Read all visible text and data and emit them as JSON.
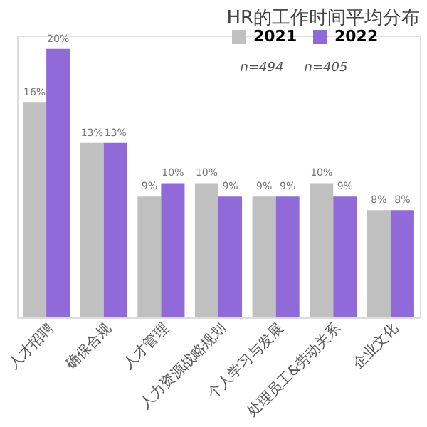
{
  "chart_data": {
    "type": "bar",
    "title": "HR的工作时间平均分布",
    "categories": [
      "人才招聘",
      "确保合规",
      "人才管理",
      "人力资源战略规划",
      "个人学习与发展",
      "处理员工&劳动关系",
      "企业文化"
    ],
    "series": [
      {
        "name": "2021",
        "color": "#c0c0c0",
        "values": [
          16,
          13,
          9,
          10,
          9,
          10,
          8
        ],
        "value_labels": [
          "16%",
          "13%",
          "9%",
          "10%",
          "9%",
          "10%",
          "8%"
        ]
      },
      {
        "name": "2022",
        "color": "#8f6ad8",
        "values": [
          20,
          13,
          10,
          9,
          9,
          9,
          8
        ],
        "value_labels": [
          "20%",
          "13%",
          "10%",
          "9%",
          "9%",
          "9%",
          "8%"
        ]
      }
    ],
    "annotations": [
      "n=494",
      "n=405"
    ],
    "ylim": [
      0,
      21
    ],
    "legend": "top right",
    "grid": false
  }
}
